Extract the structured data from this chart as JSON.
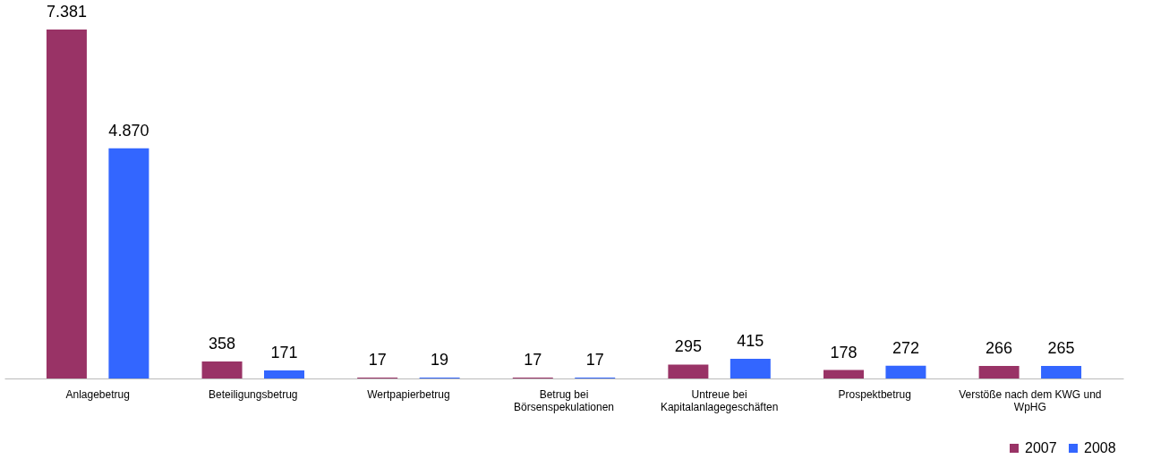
{
  "chart_data": {
    "type": "bar",
    "categories": [
      "Anlagebetrug",
      "Beteiligungsbetrug",
      "Wertpapierbetrug",
      "Betrug bei Börsenspekulationen",
      "Untreue bei Kapitalanlagegeschäften",
      "Prospektbetrug",
      "Verstöße nach dem KWG und WpHG"
    ],
    "series": [
      {
        "name": "2007",
        "color": "#993366",
        "values": [
          7381,
          358,
          17,
          17,
          295,
          178,
          266
        ],
        "value_labels": [
          "7.381",
          "358",
          "17",
          "17",
          "295",
          "178",
          "266"
        ]
      },
      {
        "name": "2008",
        "color": "#3366ff",
        "values": [
          4870,
          171,
          19,
          17,
          415,
          272,
          265
        ],
        "value_labels": [
          "4.870",
          "171",
          "19",
          "17",
          "415",
          "272",
          "265"
        ]
      }
    ],
    "legend": "bottom right",
    "grid": false
  }
}
